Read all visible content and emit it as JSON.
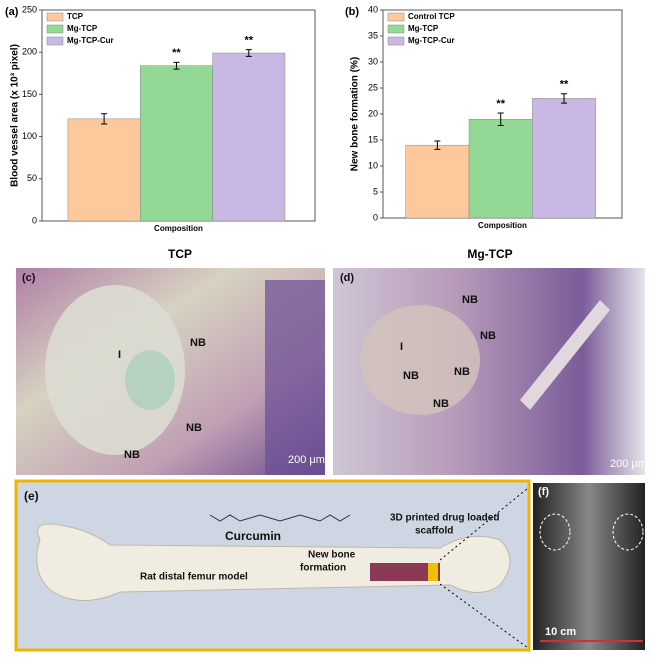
{
  "chart_data": [
    {
      "type": "bar",
      "label": "(a)",
      "y_label": "Blood vessel area (x 10³ pixel)",
      "x_label": "Composition",
      "ylim": [
        0,
        250
      ],
      "yticks": [
        0,
        50,
        100,
        150,
        200,
        250
      ],
      "legend": "upper left",
      "series": [
        {
          "name": "TCP",
          "color": "#fdc99c",
          "values": [
            121
          ],
          "errors": [
            6
          ]
        },
        {
          "name": "Mg-TCP",
          "color": "#93d895",
          "values": [
            184
          ],
          "errors": [
            4
          ],
          "annotation": "**"
        },
        {
          "name": "Mg-TCP-Cur",
          "color": "#c9b8e4",
          "values": [
            199
          ],
          "errors": [
            4
          ],
          "annotation": "**"
        }
      ]
    },
    {
      "type": "bar",
      "label": "(b)",
      "y_label": "New bone formation (%)",
      "x_label": "Composition",
      "ylim": [
        0,
        40
      ],
      "yticks": [
        0,
        5,
        10,
        15,
        20,
        25,
        30,
        35,
        40
      ],
      "legend": "upper left",
      "series": [
        {
          "name": "Control TCP",
          "color": "#fdc99c",
          "values": [
            14
          ],
          "errors": [
            0.8
          ]
        },
        {
          "name": "Mg-TCP",
          "color": "#93d895",
          "values": [
            19
          ],
          "errors": [
            1.2
          ],
          "annotation": "**"
        },
        {
          "name": "Mg-TCP-Cur",
          "color": "#c9b8e4",
          "values": [
            23
          ],
          "errors": [
            0.9
          ],
          "annotation": "**"
        }
      ]
    }
  ],
  "figure": {
    "headings": [
      "TCP",
      "Mg-TCP"
    ],
    "panel_c": {
      "label": "(c)",
      "marks": [
        "I",
        "NB",
        "NB",
        "NB"
      ],
      "scale": "200 μm"
    },
    "panel_d": {
      "label": "(d)",
      "marks": [
        "I",
        "NB",
        "NB",
        "NB",
        "NB",
        "NB"
      ],
      "scale": "200 μm"
    },
    "panel_e": {
      "label": "(e)",
      "molecule": "Curcumin",
      "scaffold": [
        "3D printed drug loaded",
        "scaffold"
      ],
      "model": "Rat distal femur model",
      "new_bone": [
        "New bone",
        "formation"
      ]
    },
    "panel_f": {
      "label": "(f)",
      "scale": "10 cm"
    }
  }
}
